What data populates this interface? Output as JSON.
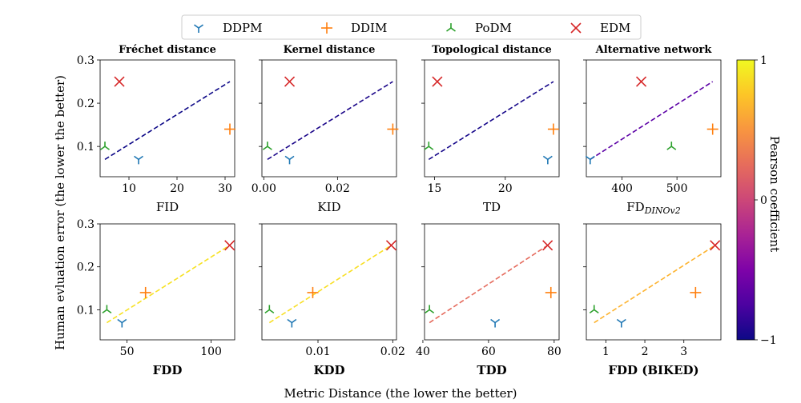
{
  "figure": {
    "supxlabel": "Metric Distance (the lower the better)",
    "supylabel": "Human evluation error (the lower the better)"
  },
  "legend": {
    "placement": "top-center",
    "entries": [
      {
        "name": "DDPM",
        "marker": "tri-down",
        "color": "#1f77b4"
      },
      {
        "name": "DDIM",
        "marker": "plus",
        "color": "#ff7f0e"
      },
      {
        "name": "PoDM",
        "marker": "tri-up",
        "color": "#2ca02c"
      },
      {
        "name": "EDM",
        "marker": "x",
        "color": "#d62728"
      }
    ]
  },
  "colorbar": {
    "label": "Pearson coefficient",
    "ticks": [
      "1",
      "0",
      "−1"
    ],
    "range": [
      -1,
      1
    ],
    "colormap": "plasma"
  },
  "chart_data": [
    {
      "type": "scatter",
      "title": "Fréchet distance",
      "xlabel": "FID",
      "xlabel_bold": false,
      "xlim": [
        4,
        32
      ],
      "ylim": [
        0.03,
        0.3
      ],
      "xticks": [
        {
          "v": 10,
          "label": "10"
        },
        {
          "v": 20,
          "label": "20"
        },
        {
          "v": 30,
          "label": "30"
        }
      ],
      "yticks": [
        {
          "v": 0.1,
          "label": "0.1"
        },
        {
          "v": 0.2,
          "label": "0.2"
        },
        {
          "v": 0.3,
          "label": "0.3"
        }
      ],
      "show_yticklabels": true,
      "points": {
        "DDPM": [
          12,
          0.07
        ],
        "DDIM": [
          31,
          0.14
        ],
        "PoDM": [
          5,
          0.1
        ],
        "EDM": [
          8,
          0.25
        ]
      },
      "fit": {
        "x0": 5,
        "y0": 0.07,
        "x1": 31,
        "y1": 0.25,
        "color": "#0d0887"
      }
    },
    {
      "type": "scatter",
      "title": "Kernel distance",
      "xlabel": "KID",
      "xlabel_bold": false,
      "xlim": [
        -0.0005,
        0.036
      ],
      "ylim": [
        0.03,
        0.3
      ],
      "xticks": [
        {
          "v": 0,
          "label": "0.00"
        },
        {
          "v": 0.02,
          "label": "0.02"
        }
      ],
      "yticks": [
        {
          "v": 0.1,
          "label": "0.1"
        },
        {
          "v": 0.2,
          "label": "0.2"
        },
        {
          "v": 0.3,
          "label": "0.3"
        }
      ],
      "show_yticklabels": false,
      "points": {
        "DDPM": [
          0.007,
          0.07
        ],
        "DDIM": [
          0.035,
          0.14
        ],
        "PoDM": [
          0.001,
          0.1
        ],
        "EDM": [
          0.007,
          0.25
        ]
      },
      "fit": {
        "x0": 0.001,
        "y0": 0.07,
        "x1": 0.035,
        "y1": 0.25,
        "color": "#1b0689"
      }
    },
    {
      "type": "scatter",
      "title": "Topological distance",
      "xlabel": "TD",
      "xlabel_bold": false,
      "xlim": [
        14.3,
        23.8
      ],
      "ylim": [
        0.03,
        0.3
      ],
      "xticks": [
        {
          "v": 15,
          "label": "15"
        },
        {
          "v": 20,
          "label": "20"
        }
      ],
      "yticks": [
        {
          "v": 0.1,
          "label": "0.1"
        },
        {
          "v": 0.2,
          "label": "0.2"
        },
        {
          "v": 0.3,
          "label": "0.3"
        }
      ],
      "show_yticklabels": false,
      "points": {
        "DDPM": [
          23,
          0.07
        ],
        "DDIM": [
          23.4,
          0.14
        ],
        "PoDM": [
          14.6,
          0.1
        ],
        "EDM": [
          15.2,
          0.25
        ]
      },
      "fit": {
        "x0": 14.6,
        "y0": 0.07,
        "x1": 23.4,
        "y1": 0.25,
        "color": "#16078a"
      }
    },
    {
      "type": "scatter",
      "title": "Alternative network",
      "xlabel": "FD",
      "xlabel_sub": "DINOv2",
      "xlabel_bold": false,
      "xlim": [
        335,
        580
      ],
      "ylim": [
        0.03,
        0.3
      ],
      "xticks": [
        {
          "v": 400,
          "label": "400"
        },
        {
          "v": 500,
          "label": "500"
        }
      ],
      "yticks": [
        {
          "v": 0.1,
          "label": "0.1"
        },
        {
          "v": 0.2,
          "label": "0.2"
        },
        {
          "v": 0.3,
          "label": "0.3"
        }
      ],
      "show_yticklabels": false,
      "points": {
        "DDPM": [
          342,
          0.07
        ],
        "DDIM": [
          565,
          0.14
        ],
        "PoDM": [
          490,
          0.1
        ],
        "EDM": [
          435,
          0.25
        ]
      },
      "fit": {
        "x0": 342,
        "y0": 0.07,
        "x1": 565,
        "y1": 0.25,
        "color": "#5c01a6"
      }
    },
    {
      "type": "scatter",
      "title": "",
      "xlabel": "FDD",
      "xlabel_bold": true,
      "xlim": [
        34,
        114
      ],
      "ylim": [
        0.03,
        0.3
      ],
      "xticks": [
        {
          "v": 50,
          "label": "50"
        },
        {
          "v": 100,
          "label": "100"
        }
      ],
      "yticks": [
        {
          "v": 0.1,
          "label": "0.1"
        },
        {
          "v": 0.2,
          "label": "0.2"
        },
        {
          "v": 0.3,
          "label": "0.3"
        }
      ],
      "show_yticklabels": true,
      "points": {
        "DDPM": [
          47,
          0.07
        ],
        "DDIM": [
          61,
          0.14
        ],
        "PoDM": [
          38,
          0.1
        ],
        "EDM": [
          111,
          0.25
        ]
      },
      "fit": {
        "x0": 38,
        "y0": 0.07,
        "x1": 111,
        "y1": 0.25,
        "color": "#f7e225"
      }
    },
    {
      "type": "scatter",
      "title": "",
      "xlabel": "KDD",
      "xlabel_bold": true,
      "xlim": [
        0.0025,
        0.0205
      ],
      "ylim": [
        0.03,
        0.3
      ],
      "xticks": [
        {
          "v": 0.01,
          "label": "0.01"
        },
        {
          "v": 0.02,
          "label": "0.02"
        }
      ],
      "yticks": [
        {
          "v": 0.1,
          "label": "0.1"
        },
        {
          "v": 0.2,
          "label": "0.2"
        },
        {
          "v": 0.3,
          "label": "0.3"
        }
      ],
      "show_yticklabels": false,
      "points": {
        "DDPM": [
          0.0065,
          0.07
        ],
        "DDIM": [
          0.0093,
          0.14
        ],
        "PoDM": [
          0.0035,
          0.1
        ],
        "EDM": [
          0.0198,
          0.25
        ]
      },
      "fit": {
        "x0": 0.0035,
        "y0": 0.07,
        "x1": 0.0198,
        "y1": 0.25,
        "color": "#f8df25"
      }
    },
    {
      "type": "scatter",
      "title": "",
      "xlabel": "TDD",
      "xlabel_bold": true,
      "xlim": [
        40.5,
        81.5
      ],
      "ylim": [
        0.03,
        0.3
      ],
      "xticks": [
        {
          "v": 40,
          "label": "40"
        },
        {
          "v": 60,
          "label": "60"
        },
        {
          "v": 80,
          "label": "80"
        }
      ],
      "yticks": [
        {
          "v": 0.1,
          "label": "0.1"
        },
        {
          "v": 0.2,
          "label": "0.2"
        },
        {
          "v": 0.3,
          "label": "0.3"
        }
      ],
      "show_yticklabels": false,
      "points": {
        "DDPM": [
          62,
          0.07
        ],
        "DDIM": [
          79,
          0.14
        ],
        "PoDM": [
          42,
          0.1
        ],
        "EDM": [
          78,
          0.25
        ]
      },
      "fit": {
        "x0": 42,
        "y0": 0.07,
        "x1": 78,
        "y1": 0.25,
        "color": "#e56b5d"
      }
    },
    {
      "type": "scatter",
      "title": "",
      "xlabel": "FDD (BIKED)",
      "xlabel_bold": true,
      "xlim": [
        0.5,
        3.95
      ],
      "ylim": [
        0.03,
        0.3
      ],
      "xticks": [
        {
          "v": 1,
          "label": "1"
        },
        {
          "v": 2,
          "label": "2"
        },
        {
          "v": 3,
          "label": "3"
        }
      ],
      "yticks": [
        {
          "v": 0.1,
          "label": "0.1"
        },
        {
          "v": 0.2,
          "label": "0.2"
        },
        {
          "v": 0.3,
          "label": "0.3"
        }
      ],
      "show_yticklabels": false,
      "points": {
        "DDPM": [
          1.4,
          0.07
        ],
        "DDIM": [
          3.3,
          0.14
        ],
        "PoDM": [
          0.7,
          0.1
        ],
        "EDM": [
          3.8,
          0.25
        ]
      },
      "fit": {
        "x0": 0.7,
        "y0": 0.07,
        "x1": 3.8,
        "y1": 0.25,
        "color": "#fdb32f"
      }
    }
  ]
}
